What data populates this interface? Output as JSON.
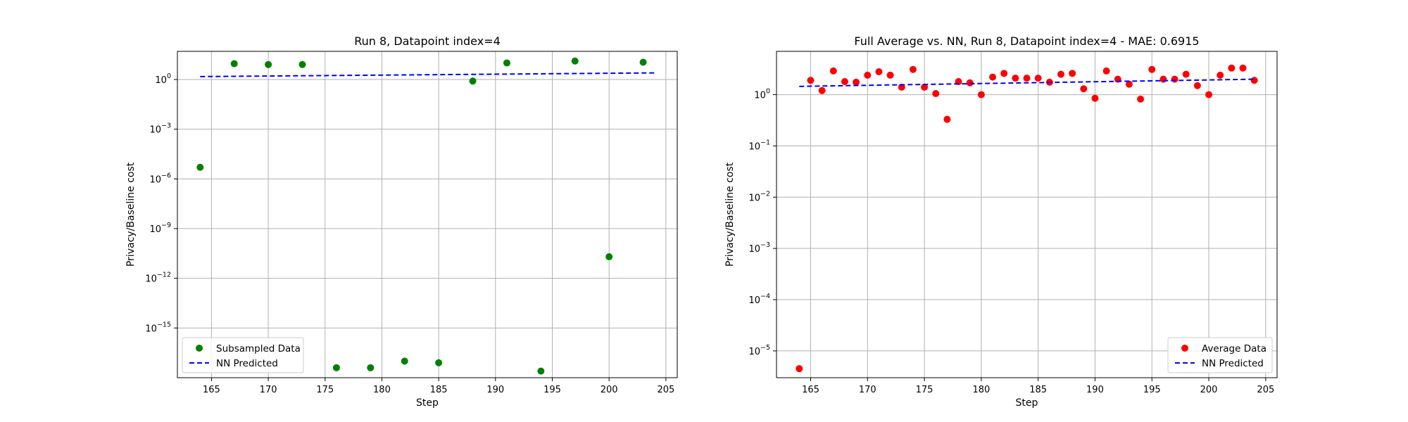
{
  "chart_data": [
    {
      "type": "scatter",
      "title": "Run 8, Datapoint index=4",
      "xlabel": "Step",
      "ylabel": "Privacy/Baseline cost",
      "yscale": "log",
      "xlim": [
        162,
        206
      ],
      "ylim": [
        1e-18,
        50
      ],
      "xticks": [
        165,
        170,
        175,
        180,
        185,
        190,
        195,
        200,
        205
      ],
      "yticks": [
        {
          "value": 1,
          "base": "10",
          "exp": "0"
        },
        {
          "value": 0.001,
          "base": "10",
          "exp": "−3"
        },
        {
          "value": 1e-06,
          "base": "10",
          "exp": "−6"
        },
        {
          "value": 1e-09,
          "base": "10",
          "exp": "−9"
        },
        {
          "value": 1e-12,
          "base": "10",
          "exp": "−12"
        },
        {
          "value": 1e-15,
          "base": "10",
          "exp": "−15"
        }
      ],
      "grid": true,
      "legend_position": "lower-left",
      "series": [
        {
          "name": "Subsampled Data",
          "kind": "scatter",
          "color": "#008000",
          "points": [
            [
              164,
              5e-06
            ],
            [
              167,
              9
            ],
            [
              170,
              8
            ],
            [
              173,
              8
            ],
            [
              176,
              4e-18
            ],
            [
              179,
              4e-18
            ],
            [
              182,
              1e-17
            ],
            [
              185,
              8e-18
            ],
            [
              188,
              0.8
            ],
            [
              191,
              10
            ],
            [
              194,
              2.5e-18
            ],
            [
              197,
              13
            ],
            [
              200,
              2e-11
            ],
            [
              203,
              11
            ]
          ]
        },
        {
          "name": "NN Predicted",
          "kind": "line",
          "color": "#0000ff",
          "points": [
            [
              164,
              1.5
            ],
            [
              204,
              2.5
            ]
          ]
        }
      ]
    },
    {
      "type": "scatter",
      "title": "Full Average vs. NN, Run 8, Datapoint index=4 - MAE: 0.6915",
      "xlabel": "Step",
      "ylabel": "Privacy/Baseline cost",
      "yscale": "log",
      "xlim": [
        162,
        206
      ],
      "ylim": [
        3e-06,
        7
      ],
      "xticks": [
        165,
        170,
        175,
        180,
        185,
        190,
        195,
        200,
        205
      ],
      "yticks": [
        {
          "value": 1,
          "base": "10",
          "exp": "0"
        },
        {
          "value": 0.1,
          "base": "10",
          "exp": "−1"
        },
        {
          "value": 0.01,
          "base": "10",
          "exp": "−2"
        },
        {
          "value": 0.001,
          "base": "10",
          "exp": "−3"
        },
        {
          "value": 0.0001,
          "base": "10",
          "exp": "−4"
        },
        {
          "value": 1e-05,
          "base": "10",
          "exp": "−5"
        }
      ],
      "grid": true,
      "legend_position": "lower-right",
      "series": [
        {
          "name": "Average Data",
          "kind": "scatter",
          "color": "#ff0000",
          "points": [
            [
              164,
              4.5e-06
            ],
            [
              165,
              1.9
            ],
            [
              166,
              1.2
            ],
            [
              167,
              2.9
            ],
            [
              168,
              1.8
            ],
            [
              169,
              1.75
            ],
            [
              170,
              2.4
            ],
            [
              171,
              2.8
            ],
            [
              172,
              2.4
            ],
            [
              173,
              1.4
            ],
            [
              174,
              3.1
            ],
            [
              175,
              1.4
            ],
            [
              176,
              1.05
            ],
            [
              177,
              0.33
            ],
            [
              178,
              1.8
            ],
            [
              179,
              1.7
            ],
            [
              180,
              1.0
            ],
            [
              181,
              2.2
            ],
            [
              182,
              2.6
            ],
            [
              183,
              2.1
            ],
            [
              184,
              2.1
            ],
            [
              185,
              2.1
            ],
            [
              186,
              1.75
            ],
            [
              187,
              2.5
            ],
            [
              188,
              2.6
            ],
            [
              189,
              1.3
            ],
            [
              190,
              0.85
            ],
            [
              191,
              2.9
            ],
            [
              192,
              2.0
            ],
            [
              193,
              1.6
            ],
            [
              194,
              0.82
            ],
            [
              195,
              3.1
            ],
            [
              196,
              2.0
            ],
            [
              197,
              2.0
            ],
            [
              198,
              2.5
            ],
            [
              199,
              1.5
            ],
            [
              200,
              1.0
            ],
            [
              201,
              2.4
            ],
            [
              202,
              3.3
            ],
            [
              203,
              3.3
            ],
            [
              204,
              1.9
            ]
          ]
        },
        {
          "name": "NN Predicted",
          "kind": "line",
          "color": "#0000ff",
          "points": [
            [
              164,
              1.45
            ],
            [
              204,
              2.0
            ]
          ]
        }
      ]
    }
  ]
}
